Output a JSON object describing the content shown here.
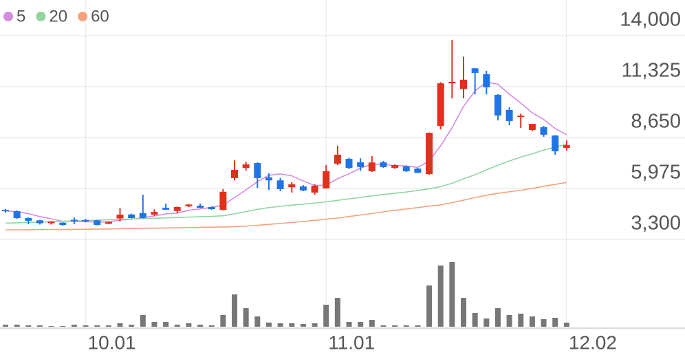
{
  "chart_data": {
    "type": "candlestick",
    "categories": [
      null,
      null,
      null,
      null,
      null,
      null,
      null,
      "10.01",
      null,
      null,
      null,
      null,
      null,
      null,
      null,
      null,
      null,
      null,
      null,
      null,
      null,
      null,
      null,
      null,
      null,
      null,
      null,
      null,
      "11.01",
      null,
      null,
      null,
      null,
      null,
      null,
      null,
      null,
      null,
      null,
      null,
      null,
      null,
      null,
      null,
      null,
      null,
      null,
      null,
      null,
      "12.02"
    ],
    "open": [
      4850,
      4780,
      4420,
      4300,
      4150,
      4180,
      4330,
      4320,
      4300,
      4120,
      4400,
      4610,
      4680,
      4600,
      4960,
      4790,
      5040,
      5070,
      5000,
      4850,
      6520,
      7060,
      7310,
      6560,
      6400,
      6040,
      6080,
      5760,
      5980,
      7280,
      7530,
      7350,
      6880,
      7350,
      7060,
      7130,
      7020,
      6730,
      9260,
      11500,
      11200,
      12290,
      11980,
      10890,
      10100,
      9750,
      9050,
      9200,
      8760,
      8110
    ],
    "high": [
      4900,
      4820,
      4450,
      4320,
      4260,
      4200,
      4450,
      4380,
      4320,
      4240,
      4950,
      4650,
      5650,
      4880,
      5180,
      5030,
      5170,
      5180,
      5030,
      5940,
      7450,
      7380,
      7350,
      6770,
      6520,
      6300,
      6150,
      6200,
      7200,
      8220,
      7600,
      7560,
      7680,
      7420,
      7240,
      7170,
      7060,
      8920,
      11560,
      13780,
      12900,
      12310,
      12160,
      10930,
      10240,
      9910,
      9370,
      9260,
      8780,
      8500
    ],
    "low": [
      4700,
      4380,
      4100,
      4080,
      4080,
      4020,
      4100,
      4200,
      4040,
      4100,
      4250,
      4400,
      4400,
      4550,
      4850,
      4680,
      5000,
      4940,
      4860,
      4820,
      6400,
      6910,
      6010,
      5900,
      5830,
      5760,
      5830,
      5650,
      5970,
      7200,
      6990,
      6900,
      6840,
      7060,
      7000,
      6840,
      6780,
      6700,
      9080,
      10710,
      10710,
      10920,
      10920,
      9550,
      9300,
      9160,
      8980,
      8690,
      7750,
      7970
    ],
    "close": [
      4780,
      4420,
      4280,
      4150,
      4240,
      4060,
      4300,
      4250,
      4060,
      4220,
      4600,
      4420,
      4430,
      4740,
      4860,
      5000,
      5130,
      4960,
      4890,
      5800,
      6950,
      7240,
      6520,
      6400,
      5940,
      6190,
      5870,
      6120,
      6880,
      7750,
      7060,
      7100,
      7340,
      7100,
      7200,
      6880,
      6800,
      8900,
      11500,
      11580,
      11690,
      12050,
      11290,
      9810,
      9520,
      9800,
      9370,
      8800,
      7930,
      8250
    ],
    "up_color": "#e0301e",
    "down_color": "#1f74e6",
    "series": [
      {
        "name": "5",
        "color": "#d48be0",
        "values": [
          4800,
          4750,
          4650,
          4500,
          4380,
          4250,
          4240,
          4230,
          4210,
          4220,
          4310,
          4360,
          4440,
          4530,
          4640,
          4680,
          4830,
          4900,
          4980,
          5100,
          5500,
          5900,
          6330,
          6670,
          6740,
          6640,
          6370,
          6130,
          6150,
          6490,
          6750,
          7040,
          7250,
          7240,
          7180,
          7160,
          7080,
          7420,
          8220,
          9170,
          10290,
          11100,
          11570,
          11450,
          10930,
          10460,
          9950,
          9600,
          9130,
          8800
        ]
      },
      {
        "name": "20",
        "color": "#8fd69f",
        "values": [
          4150,
          4170,
          4190,
          4210,
          4230,
          4250,
          4270,
          4290,
          4310,
          4330,
          4350,
          4370,
          4390,
          4410,
          4430,
          4450,
          4470,
          4490,
          4510,
          4540,
          4640,
          4760,
          4880,
          4970,
          5040,
          5100,
          5150,
          5210,
          5270,
          5350,
          5430,
          5510,
          5590,
          5660,
          5720,
          5790,
          5870,
          5960,
          6070,
          6250,
          6480,
          6700,
          6950,
          7200,
          7420,
          7620,
          7800,
          7990,
          8150,
          8300
        ]
      },
      {
        "name": "60",
        "color": "#f5a27a",
        "values": [
          3800,
          3805,
          3810,
          3815,
          3820,
          3825,
          3830,
          3835,
          3840,
          3850,
          3860,
          3870,
          3880,
          3890,
          3900,
          3910,
          3920,
          3930,
          3940,
          3950,
          3970,
          4000,
          4040,
          4090,
          4140,
          4190,
          4240,
          4300,
          4360,
          4420,
          4500,
          4580,
          4660,
          4750,
          4830,
          4900,
          4970,
          5050,
          5110,
          5230,
          5360,
          5500,
          5620,
          5720,
          5800,
          5880,
          5980,
          6090,
          6190,
          6290
        ]
      }
    ],
    "volume": {
      "color": "#777777",
      "values": [
        3,
        3,
        2,
        2,
        1,
        1,
        3,
        2,
        2,
        2,
        5,
        3,
        17,
        7,
        7,
        3,
        5,
        3,
        2,
        17,
        47,
        27,
        15,
        6,
        5,
        5,
        4,
        5,
        32,
        42,
        7,
        7,
        10,
        2,
        2,
        2,
        2,
        60,
        89,
        94,
        42,
        20,
        12,
        27,
        17,
        19,
        15,
        11,
        13,
        6
      ]
    },
    "ylim": [
      3300,
      14000
    ],
    "yticks": [
      {
        "value": 14000,
        "label": "14,000"
      },
      {
        "value": 11325,
        "label": "11,325"
      },
      {
        "value": 8650,
        "label": "8,650"
      },
      {
        "value": 5975,
        "label": "5,975"
      },
      {
        "value": 3300,
        "label": "3,300"
      }
    ],
    "grid": true
  }
}
